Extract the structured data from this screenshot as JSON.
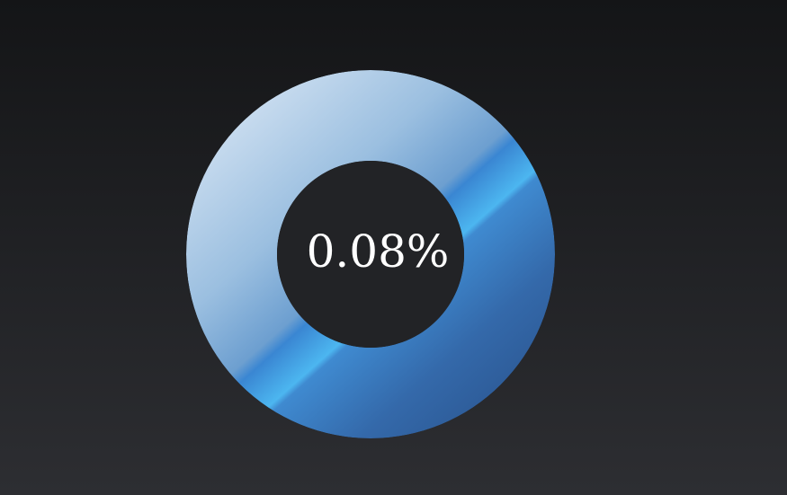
{
  "value_label": "0.08%",
  "value_percent": 0.08,
  "colors": {
    "background_top": "#141517",
    "background_bottom": "#2d2e32",
    "hole": "#222326",
    "ring_light": "#c9dcef",
    "ring_mid": "#6a9fd0",
    "band_bright": "#44b0ee",
    "ring_dark": "#2f5e9a",
    "label": "#ffffff"
  }
}
